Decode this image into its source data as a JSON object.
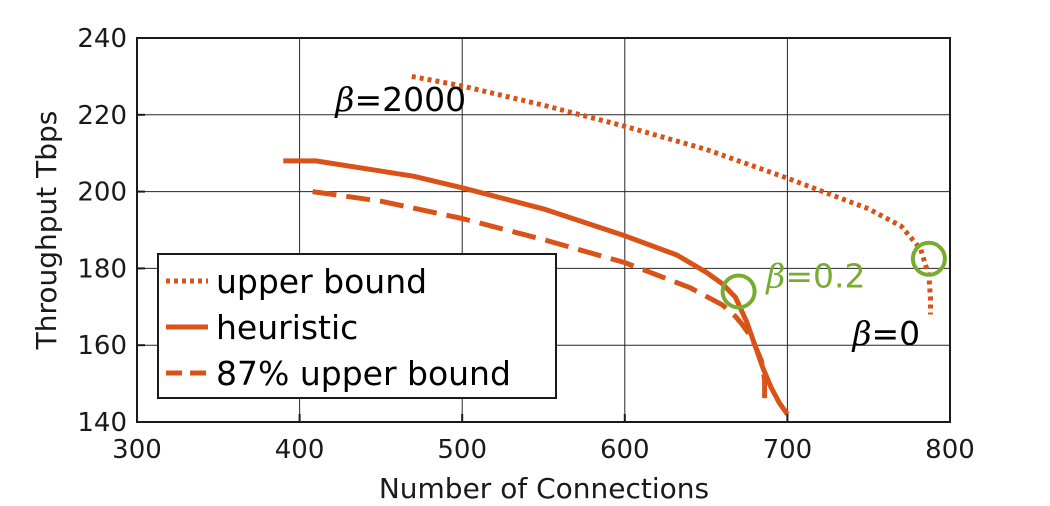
{
  "chart_data": {
    "type": "line",
    "xlabel": "Number of Connections",
    "ylabel": "Throughput Tbps",
    "xlim": [
      300,
      800
    ],
    "ylim": [
      140,
      240
    ],
    "xticks": [
      300,
      400,
      500,
      600,
      700,
      800
    ],
    "yticks": [
      140,
      160,
      180,
      200,
      220,
      240
    ],
    "grid": true,
    "legend_position": "lower-left",
    "series": [
      {
        "name": "upper bound",
        "style": "dotted",
        "color": "#d95319",
        "x": [
          469,
          500,
          550,
          600,
          650,
          700,
          750,
          770,
          782,
          787,
          788,
          788
        ],
        "y": [
          230,
          227.5,
          222.5,
          217,
          211,
          203.5,
          195.5,
          191,
          185,
          178,
          172,
          168
        ]
      },
      {
        "name": "heuristic",
        "style": "solid",
        "color": "#d95319",
        "x": [
          390,
          410,
          470,
          500,
          550,
          600,
          632,
          650,
          660,
          668,
          675,
          680,
          685,
          690,
          695,
          700
        ],
        "y": [
          208,
          208,
          204,
          201,
          195.5,
          188.5,
          183.5,
          179,
          176,
          172.5,
          166,
          160,
          154,
          149,
          145,
          142
        ]
      },
      {
        "name": "87% upper bound",
        "style": "dashed",
        "color": "#d95319",
        "x": [
          408,
          450,
          500,
          550,
          600,
          640,
          660,
          668,
          672,
          678,
          684,
          686,
          686
        ],
        "y": [
          200,
          197.5,
          193,
          187.5,
          181.5,
          175,
          170.5,
          167.5,
          165.5,
          162,
          156,
          151,
          146
        ]
      }
    ],
    "markers": [
      {
        "x": 670,
        "y": 174,
        "color": "#77ac30",
        "shape": "circle"
      },
      {
        "x": 787,
        "y": 182.5,
        "color": "#77ac30",
        "shape": "circle"
      }
    ],
    "annotations": [
      {
        "beta": "β",
        "value": "=2000",
        "x": 422,
        "y": 221,
        "color": "#000000"
      },
      {
        "beta": "β",
        "value": "=0.2",
        "x": 687,
        "y": 175,
        "color": "#77ac30"
      },
      {
        "beta": "β",
        "value": "=0",
        "x": 740,
        "y": 160,
        "color": "#000000"
      }
    ]
  }
}
